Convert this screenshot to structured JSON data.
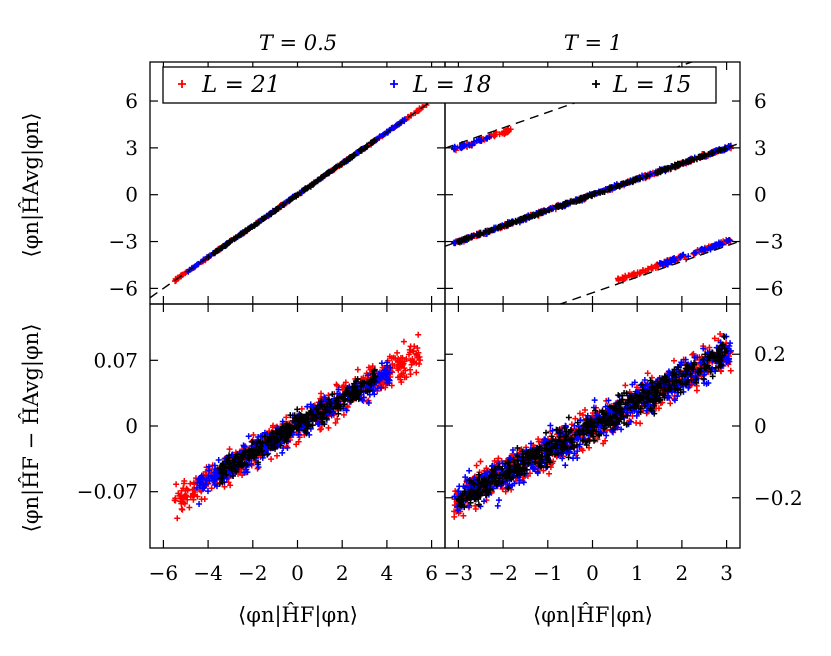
{
  "chart_data": [
    {
      "id": "top-left",
      "type": "scatter",
      "title": "T = 0.5",
      "xlabel": "",
      "ylabel": "⟨φn|ĤAvg|φn⟩",
      "xlim": [
        -6.6,
        6.6
      ],
      "ylim": [
        -7.0,
        8.5
      ],
      "yticks": [
        -6,
        -3,
        0,
        3,
        6
      ],
      "ytick_side": "left",
      "reference_lines": [
        {
          "slope": 1,
          "intercept": 0
        }
      ],
      "series": [
        {
          "name": "L = 21",
          "color": "#ff0000",
          "band": [
            {
              "x": [
                -5.5,
                5.8
              ],
              "slope": 1,
              "intercept": 0,
              "spread": 0.05
            }
          ]
        },
        {
          "name": "L = 18",
          "color": "#0000ff",
          "band": [
            {
              "x": [
                -5.0,
                4.8
              ],
              "slope": 1,
              "intercept": 0,
              "spread": 0.05
            }
          ]
        },
        {
          "name": "L = 15",
          "color": "#000000",
          "band": [
            {
              "x": [
                -4.0,
                3.5
              ],
              "slope": 1,
              "intercept": 0,
              "spread": 0.04
            }
          ]
        }
      ]
    },
    {
      "id": "top-right",
      "type": "scatter",
      "title": "T = 1",
      "xlabel": "",
      "ylabel": "",
      "xlim": [
        -3.3,
        3.3
      ],
      "ylim": [
        -7.0,
        8.5
      ],
      "yticks": [
        -6,
        -3,
        0,
        3,
        6
      ],
      "ytick_side": "right",
      "reference_lines": [
        {
          "slope": 1,
          "intercept": 0
        },
        {
          "slope": 1,
          "intercept": 6.28
        },
        {
          "slope": 1,
          "intercept": -6.28
        }
      ],
      "series": [
        {
          "name": "L = 21",
          "color": "#ff0000",
          "band": [
            {
              "x": [
                -3.1,
                3.1
              ],
              "slope": 1,
              "intercept": 0,
              "spread": 0.08
            },
            {
              "x": [
                -3.1,
                -1.8
              ],
              "slope": 1,
              "intercept": 6.0,
              "spread": 0.1
            },
            {
              "x": [
                0.5,
                3.1
              ],
              "slope": 1,
              "intercept": -6.0,
              "spread": 0.1
            }
          ]
        },
        {
          "name": "L = 18",
          "color": "#0000ff",
          "band": [
            {
              "x": [
                -3.1,
                3.1
              ],
              "slope": 1,
              "intercept": 0,
              "spread": 0.08
            },
            {
              "x": [
                -3.1,
                -2.3
              ],
              "slope": 1,
              "intercept": 6.0,
              "spread": 0.1
            },
            {
              "x": [
                1.5,
                3.1
              ],
              "slope": 1,
              "intercept": -6.0,
              "spread": 0.1
            }
          ]
        },
        {
          "name": "L = 15",
          "color": "#000000",
          "band": [
            {
              "x": [
                -3.0,
                3.0
              ],
              "slope": 1,
              "intercept": 0,
              "spread": 0.06
            }
          ]
        }
      ]
    },
    {
      "id": "bottom-left",
      "type": "scatter",
      "title": "",
      "xlabel": "⟨φn|ĤF|φn⟩",
      "ylabel": "⟨φn|ĤF − ĤAvg|φn⟩",
      "xlim": [
        -6.6,
        6.6
      ],
      "ylim": [
        -0.13,
        0.13
      ],
      "xticks": [
        -6,
        -4,
        -2,
        0,
        2,
        4,
        6
      ],
      "yticks": [
        -0.07,
        0,
        0.07
      ],
      "ytick_labels": [
        "−0.07",
        "0",
        "0.07"
      ],
      "ytick_side": "left",
      "series": [
        {
          "name": "L = 21",
          "color": "#ff0000",
          "band": [
            {
              "x": [
                -5.5,
                5.5
              ],
              "slope": 0.0142,
              "intercept": 0,
              "spread": 0.012
            }
          ]
        },
        {
          "name": "L = 18",
          "color": "#0000ff",
          "band": [
            {
              "x": [
                -4.5,
                4.2
              ],
              "slope": 0.0142,
              "intercept": 0,
              "spread": 0.01
            }
          ]
        },
        {
          "name": "L = 15",
          "color": "#000000",
          "band": [
            {
              "x": [
                -3.5,
                3.5
              ],
              "slope": 0.0142,
              "intercept": 0,
              "spread": 0.008
            }
          ]
        }
      ]
    },
    {
      "id": "bottom-right",
      "type": "scatter",
      "title": "",
      "xlabel": "⟨φn|ĤF|φn⟩",
      "ylabel": "",
      "xlim": [
        -3.3,
        3.3
      ],
      "ylim": [
        -0.34,
        0.34
      ],
      "xticks": [
        -3,
        -2,
        -1,
        0,
        1,
        2,
        3
      ],
      "yticks": [
        -0.2,
        0,
        0.2
      ],
      "ytick_labels": [
        "−0.2",
        "0",
        "0.2"
      ],
      "ytick_side": "right",
      "series": [
        {
          "name": "L = 21",
          "color": "#ff0000",
          "band": [
            {
              "x": [
                -3.1,
                3.1
              ],
              "slope": 0.068,
              "intercept": 0,
              "spread": 0.035
            }
          ]
        },
        {
          "name": "L = 18",
          "color": "#0000ff",
          "band": [
            {
              "x": [
                -3.1,
                3.1
              ],
              "slope": 0.068,
              "intercept": 0,
              "spread": 0.035
            }
          ]
        },
        {
          "name": "L = 15",
          "color": "#000000",
          "band": [
            {
              "x": [
                -3.0,
                3.0
              ],
              "slope": 0.068,
              "intercept": 0,
              "spread": 0.028
            }
          ]
        }
      ]
    }
  ],
  "legend": {
    "location": "top-center",
    "entries": [
      {
        "label": "L = 21",
        "color": "#ff0000"
      },
      {
        "label": "L = 18",
        "color": "#0000ff"
      },
      {
        "label": "L = 15",
        "color": "#000000"
      }
    ]
  }
}
